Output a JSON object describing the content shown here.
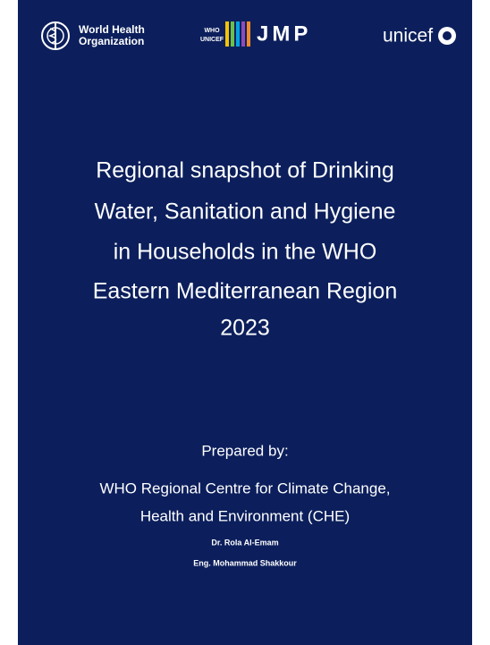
{
  "header": {
    "who_name": [
      "World Health",
      "Organization"
    ],
    "jmp_partners": [
      "WHO",
      "UNICEF"
    ],
    "jmp": "JMP",
    "unicef": "unicef"
  },
  "title_lines": [
    "Regional snapshot of Drinking",
    "Water, Sanitation and Hygiene",
    "in Households in the WHO",
    "Eastern Mediterranean Region",
    "2023"
  ],
  "prepared_by": "Prepared by:",
  "organization_lines": [
    "WHO Regional Centre for Climate Change,",
    "Health and Environment (CHE)"
  ],
  "authors": [
    "Dr. Rola Al-Emam",
    "Eng. Mohammad Shakkour"
  ]
}
